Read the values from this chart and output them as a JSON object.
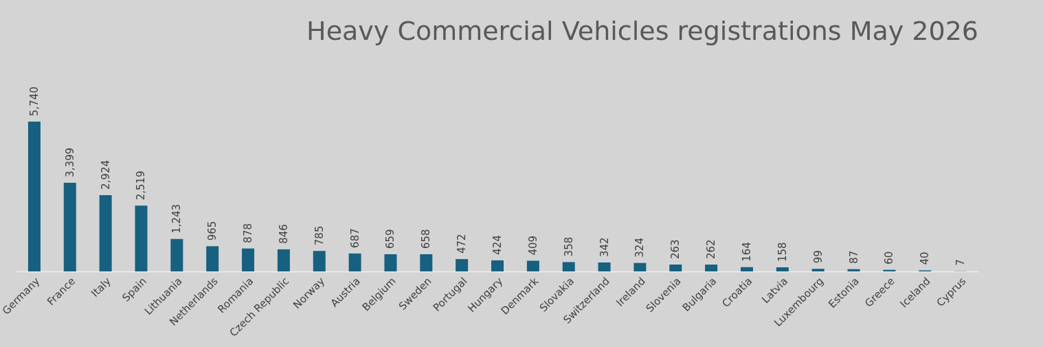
{
  "chart_data": {
    "type": "bar",
    "title": "Heavy Commercial Vehicles registrations May 2026",
    "categories": [
      "Germany",
      "France",
      "Italy",
      "Spain",
      "Lithuania",
      "Netherlands",
      "Romania",
      "Czech Republic",
      "Norway",
      "Austria",
      "Belgium",
      "Sweden",
      "Portugal",
      "Hungary",
      "Denmark",
      "Slovakia",
      "Switzerland",
      "Ireland",
      "Slovenia",
      "Bulgaria",
      "Croatia",
      "Latvia",
      "Luxembourg",
      "Estonia",
      "Greece",
      "Iceland",
      "Cyprus"
    ],
    "values": [
      5740,
      3399,
      2924,
      2519,
      1243,
      965,
      878,
      846,
      785,
      687,
      659,
      658,
      472,
      424,
      409,
      358,
      342,
      324,
      263,
      262,
      164,
      158,
      99,
      87,
      60,
      40,
      7
    ],
    "value_labels": [
      "5,740",
      "3,399",
      "2,924",
      "2,519",
      "1,243",
      "965",
      "878",
      "846",
      "785",
      "687",
      "659",
      "658",
      "472",
      "424",
      "409",
      "358",
      "342",
      "324",
      "263",
      "262",
      "164",
      "158",
      "99",
      "87",
      "60",
      "40",
      "7"
    ],
    "color": "#17607f"
  }
}
